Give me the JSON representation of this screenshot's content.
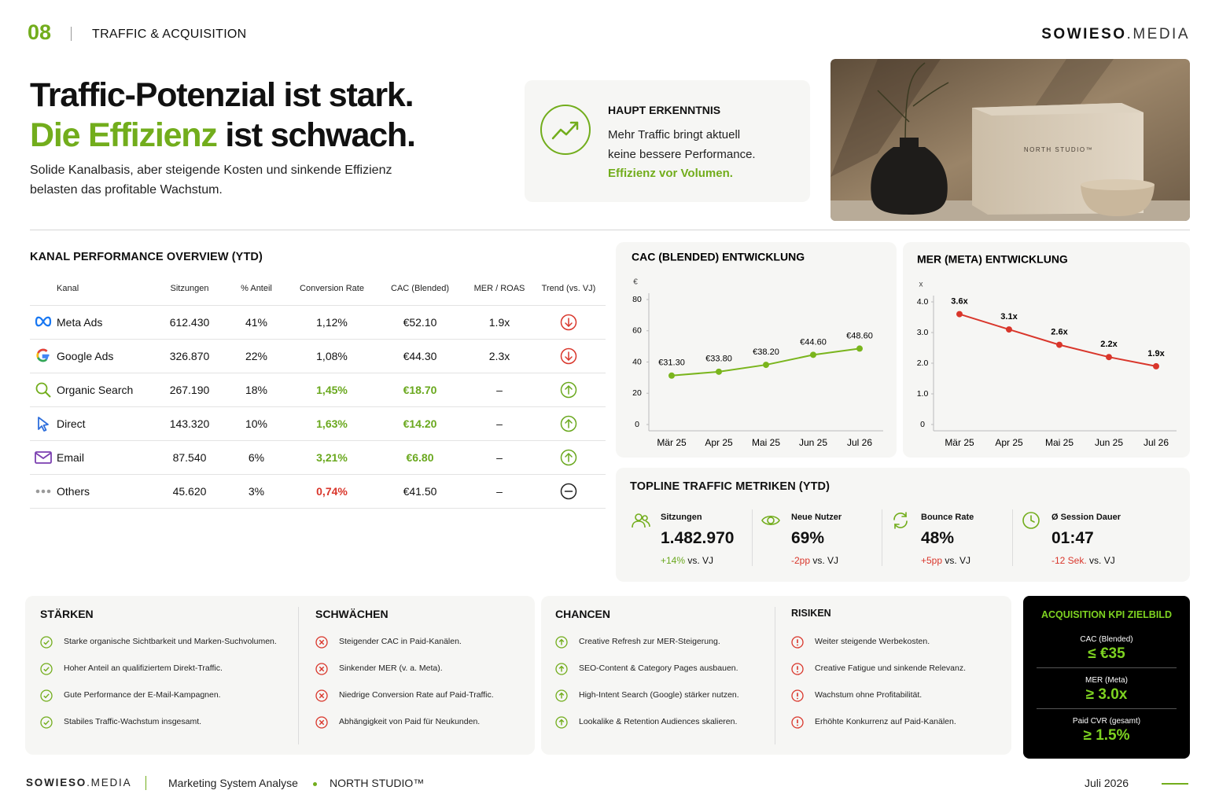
{
  "header": {
    "number": "08",
    "section": "TRAFFIC & ACQUISITION",
    "brand": "SOWIESO",
    "brand_suffix": ".MEDIA"
  },
  "hero": {
    "title_line1": "Traffic-Potenzial ist stark.",
    "title_accent": "Die Effizienz",
    "title_rest": "ist schwach.",
    "subtitle_lines": [
      "Solide Kanalbasis, aber steigende Kosten und sinkende Effizienz",
      "belasten das profitable Wachstum."
    ]
  },
  "insight": {
    "label": "HAUPT ERKENNTNIS",
    "lines": [
      "Mehr Traffic bringt aktuell",
      "keine bessere Performance."
    ],
    "accent": "Effizienz vor Volumen."
  },
  "image": {
    "box_label": "NORTH STUDIO™"
  },
  "table": {
    "title": "KANAL PERFORMANCE OVERVIEW (YTD)",
    "columns": [
      "Kanal",
      "Sitzungen",
      "% Anteil",
      "Conversion Rate",
      "CAC (Blended)",
      "MER / ROAS",
      "Trend (vs. VJ)"
    ],
    "rows": [
      {
        "channel": "Meta Ads",
        "sessions": "612.430",
        "share": "41%",
        "cr": "1,12%",
        "cac": "€52.10",
        "mer": "1.9x",
        "trend": "down",
        "trend_color": "#d9362b"
      },
      {
        "channel": "Google Ads",
        "sessions": "326.870",
        "share": "22%",
        "cr": "1,08%",
        "cac": "€44.30",
        "mer": "2.3x",
        "trend": "down",
        "trend_color": "#d9362b"
      },
      {
        "channel": "Organic Search",
        "sessions": "267.190",
        "share": "18%",
        "cr": "1,45%",
        "cac": "€18.70",
        "mer": "–",
        "trend": "up",
        "trend_color": "#6aa81e",
        "cr_color": "#6aa81e",
        "cac_color": "#6aa81e"
      },
      {
        "channel": "Direct",
        "sessions": "143.320",
        "share": "10%",
        "cr": "1,63%",
        "cac": "€14.20",
        "mer": "–",
        "trend": "up",
        "trend_color": "#6aa81e",
        "cr_color": "#6aa81e",
        "cac_color": "#6aa81e"
      },
      {
        "channel": "Email",
        "sessions": "87.540",
        "share": "6%",
        "cr": "3,21%",
        "cac": "€6.80",
        "mer": "–",
        "trend": "up",
        "trend_color": "#6aa81e",
        "cr_color": "#6aa81e",
        "cac_color": "#6aa81e"
      },
      {
        "channel": "Others",
        "sessions": "45.620",
        "share": "3%",
        "cr": "0,74%",
        "cac": "€41.50",
        "mer": "–",
        "trend": "flat",
        "trend_color": "#222222",
        "cr_color": "#d9362b"
      }
    ]
  },
  "chart_data": [
    {
      "type": "line",
      "title": "CAC (BLENDED) ENTWICKLUNG",
      "y_label": "€",
      "categories": [
        "Mär 25",
        "Apr 25",
        "Mai 25",
        "Jun 25",
        "Jul 26"
      ],
      "values": [
        31.3,
        33.8,
        38.2,
        44.6,
        48.6
      ],
      "value_labels": [
        "€31.30",
        "€33.80",
        "€38.20",
        "€44.60",
        "€48.60"
      ],
      "color": "#7ab51d",
      "ylim": [
        0,
        80
      ],
      "yticks": [
        0,
        20,
        40,
        60,
        80
      ]
    },
    {
      "type": "line",
      "title": "MER (META) ENTWICKLUNG",
      "y_label": "x",
      "categories": [
        "Mär 25",
        "Apr 25",
        "Mai 25",
        "Jun 25",
        "Jul 26"
      ],
      "values": [
        3.6,
        3.1,
        2.6,
        2.2,
        1.9
      ],
      "value_labels": [
        "3.6x",
        "3.1x",
        "2.6x",
        "2.2x",
        "1.9x"
      ],
      "color": "#d9362b",
      "ylim": [
        0,
        4
      ],
      "yticks": [
        0,
        {
          "value": 1,
          "label": "1.0"
        },
        {
          "value": 2,
          "label": "2.0"
        },
        {
          "value": 3,
          "label": "3.0"
        },
        {
          "value": 4,
          "label": "4.0"
        }
      ]
    }
  ],
  "topline": {
    "title": "TOPLINE TRAFFIC METRIKEN (YTD)",
    "metrics": [
      {
        "label": "Sitzungen",
        "value": "1.482.970",
        "delta": "+14%",
        "vs": "vs. VJ",
        "delta_color": "#6aa81e"
      },
      {
        "label": "Neue Nutzer",
        "value": "69%",
        "delta": "-2pp",
        "vs": "vs. VJ",
        "delta_color": "#d9362b"
      },
      {
        "label": "Bounce Rate",
        "value": "48%",
        "delta": "+5pp",
        "vs": "vs. VJ",
        "delta_color": "#d9362b"
      },
      {
        "label": "Ø Session Dauer",
        "value": "01:47",
        "delta": "-12 Sek.",
        "vs": "vs. VJ",
        "delta_color": "#d9362b"
      }
    ]
  },
  "swot": [
    {
      "title": "STÄRKEN",
      "items": [
        "Starke organische Sichtbarkeit und Marken-Suchvolumen.",
        "Hoher Anteil an qualifiziertem Direkt-Traffic.",
        "Gute Performance der E-Mail-Kampagnen.",
        "Stabiles Traffic-Wachstum insgesamt."
      ]
    },
    {
      "title": "SCHWÄCHEN",
      "items": [
        "Steigender CAC in Paid-Kanälen.",
        "Sinkender MER (v. a. Meta).",
        "Niedrige Conversion Rate auf Paid-Traffic.",
        "Abhängigkeit von Paid für Neukunden."
      ]
    },
    {
      "title": "CHANCEN",
      "items": [
        "Creative Refresh zur MER-Steigerung.",
        "SEO-Content & Category Pages ausbauen.",
        "High-Intent Search (Google) stärker nutzen.",
        "Lookalike & Retention Audiences skalieren."
      ]
    },
    {
      "title": "RISIKEN",
      "items": [
        "Weiter steigende Werbekosten.",
        "Creative Fatigue und sinkende Relevanz.",
        "Wachstum ohne Profitabilität.",
        "Erhöhte Konkurrenz auf Paid-Kanälen."
      ]
    }
  ],
  "kpi": {
    "title": "ACQUISITION KPI ZIELBILD",
    "items": [
      {
        "label": "CAC (Blended)",
        "value": "≤ €35"
      },
      {
        "label": "MER (Meta)",
        "value": "≥ 3.0x"
      },
      {
        "label": "Paid CVR (gesamt)",
        "value": "≥ 1.5%"
      }
    ]
  },
  "footer": {
    "brand": "SOWIESO",
    "brand_suffix": ".MEDIA",
    "project": "Marketing System Analyse",
    "client": "NORTH STUDIO™",
    "date": "Juli 2026"
  }
}
